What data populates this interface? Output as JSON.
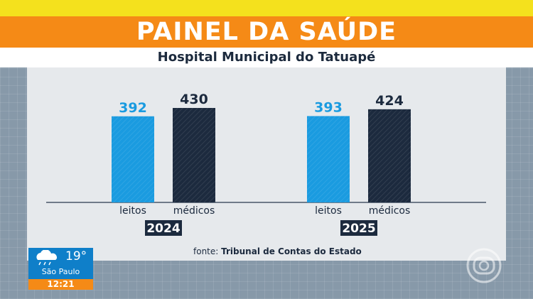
{
  "header": {
    "title": "PAINEL DA SAÚDE",
    "subtitle": "Hospital Municipal do Tatuapé"
  },
  "colors": {
    "accent_orange": "#f58a16",
    "accent_yellow": "#f4e11d",
    "leitos_blue": "#1a9be0",
    "medicos_navy": "#1c2a3e"
  },
  "chart_data": {
    "type": "bar",
    "groups": [
      "2024",
      "2025"
    ],
    "categories": [
      "leitos",
      "médicos"
    ],
    "series": [
      {
        "name": "leitos",
        "values": [
          392,
          393
        ]
      },
      {
        "name": "médicos",
        "values": [
          430,
          424
        ]
      }
    ],
    "title": "PAINEL DA SAÚDE",
    "subtitle": "Hospital Municipal do Tatuapé",
    "xlabel": "",
    "ylabel": "",
    "ylim": [
      0,
      450
    ],
    "grid": false,
    "legend": "none"
  },
  "source": {
    "prefix": "fonte:",
    "name": "Tribunal de Contas do Estado"
  },
  "weather": {
    "icon": "rain-cloud-icon",
    "temperature": "19°",
    "city": "São Paulo",
    "time": "12:21"
  },
  "broadcaster": {
    "logo": "globo-logo-icon"
  }
}
